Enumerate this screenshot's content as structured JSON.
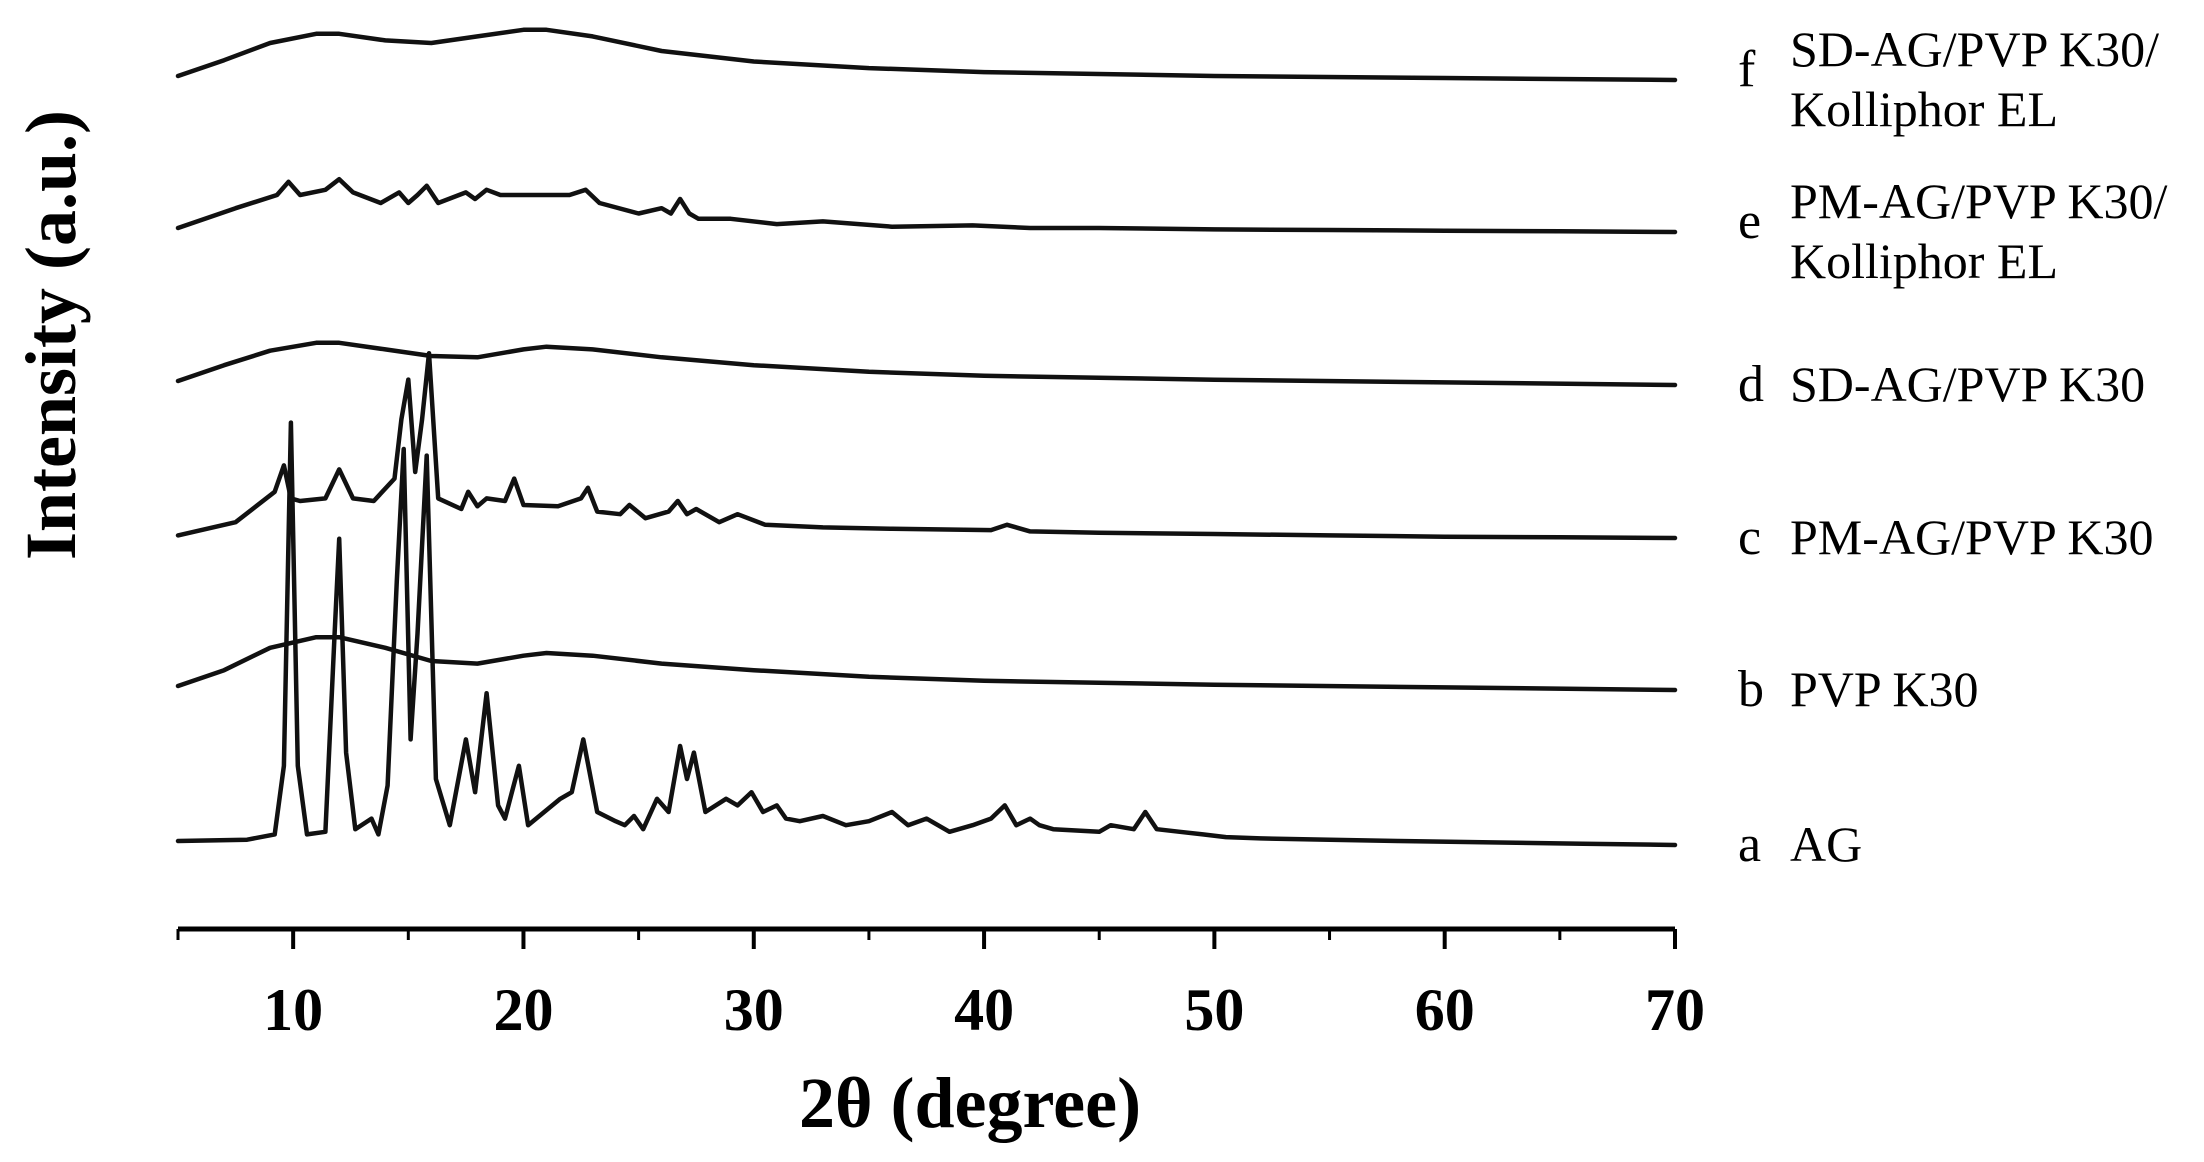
{
  "chart_data": {
    "type": "line",
    "title": "",
    "xlabel": "2θ (degree)",
    "ylabel": "Intensity (a.u.)",
    "xlim": [
      5,
      70
    ],
    "xticks": [
      10,
      20,
      30,
      40,
      50,
      60,
      70
    ],
    "grid": false,
    "legend": "right",
    "y_scale": "offset-stacked, arbitrary units",
    "series": [
      {
        "letter": "a",
        "name": "AG",
        "x": [
          5,
          8.0,
          9.2,
          9.6,
          9.9,
          10.2,
          10.6,
          11.4,
          11.8,
          12.0,
          12.3,
          12.7,
          13.4,
          13.7,
          14.1,
          14.5,
          14.8,
          15.1,
          15.4,
          15.8,
          16.2,
          16.8,
          17.5,
          17.9,
          18.4,
          18.9,
          19.2,
          19.5,
          19.8,
          20.2,
          21.6,
          22.1,
          22.6,
          23.2,
          24.0,
          24.4,
          24.8,
          25.2,
          25.8,
          26.3,
          26.8,
          27.1,
          27.4,
          27.9,
          28.8,
          29.3,
          29.9,
          30.4,
          31.0,
          31.4,
          32.0,
          33.0,
          34.0,
          35.0,
          36.0,
          36.7,
          37.5,
          38.5,
          39.5,
          40.3,
          40.9,
          41.4,
          42.0,
          42.4,
          43.0,
          45.0,
          45.5,
          46.5,
          47.0,
          47.5,
          48.5,
          49.5,
          50.5,
          52,
          55,
          58,
          62,
          66,
          70
        ],
        "values": [
          3,
          4,
          8,
          60,
          320,
          60,
          8,
          10,
          160,
          232,
          70,
          12,
          20,
          8,
          45,
          200,
          300,
          80,
          160,
          295,
          50,
          15,
          80,
          40,
          115,
          30,
          20,
          40,
          60,
          15,
          35,
          40,
          80,
          25,
          18,
          15,
          22,
          12,
          35,
          25,
          75,
          50,
          70,
          25,
          35,
          30,
          40,
          25,
          30,
          20,
          18,
          22,
          15,
          18,
          25,
          15,
          20,
          10,
          15,
          20,
          30,
          15,
          20,
          15,
          12,
          10,
          15,
          12,
          25,
          12,
          10,
          8,
          6,
          5,
          4,
          3,
          2,
          1,
          0
        ]
      },
      {
        "letter": "b",
        "name": "PVP K30",
        "x": [
          5,
          7,
          9,
          11,
          12,
          14,
          16,
          18,
          20,
          21,
          23,
          26,
          30,
          35,
          40,
          50,
          60,
          70
        ],
        "values": [
          3,
          15,
          32,
          40,
          40,
          32,
          22,
          20,
          26,
          28,
          26,
          20,
          15,
          10,
          7,
          4,
          2,
          0
        ]
      },
      {
        "letter": "c",
        "name": "PM-AG/PVP K30",
        "x": [
          5,
          7.5,
          9.2,
          9.6,
          9.9,
          10.3,
          11.4,
          12.0,
          12.6,
          13.5,
          14.4,
          14.7,
          15.0,
          15.3,
          15.6,
          15.9,
          16.3,
          17.3,
          17.6,
          18.0,
          18.4,
          19.2,
          19.6,
          20.0,
          21.5,
          22.5,
          22.8,
          23.2,
          24.2,
          24.6,
          25.3,
          26.3,
          26.7,
          27.1,
          27.5,
          28.5,
          29.3,
          30.5,
          33,
          36,
          40.3,
          41,
          42,
          45,
          50,
          55,
          60,
          65,
          70
        ],
        "values": [
          2,
          12,
          35,
          55,
          30,
          28,
          30,
          52,
          30,
          28,
          45,
          90,
          120,
          50,
          90,
          140,
          30,
          22,
          35,
          24,
          30,
          28,
          45,
          25,
          24,
          30,
          38,
          20,
          18,
          25,
          15,
          20,
          28,
          18,
          22,
          12,
          18,
          10,
          8,
          7,
          6,
          10,
          5,
          4,
          3,
          2,
          1,
          0.5,
          0
        ]
      },
      {
        "letter": "d",
        "name": "SD-AG/PVP K30",
        "x": [
          5,
          7,
          9,
          11,
          12,
          14,
          16,
          18,
          20,
          21,
          23,
          26,
          30,
          35,
          40,
          50,
          60,
          70
        ],
        "values": [
          3,
          15,
          26,
          32,
          32,
          27,
          22,
          21,
          27,
          29,
          27,
          21,
          15,
          10,
          7,
          4,
          2,
          0
        ]
      },
      {
        "letter": "e",
        "name": "PM-AG/PVP K30/ Kolliphor EL",
        "x": [
          5,
          7.5,
          9.3,
          9.8,
          10.3,
          11.4,
          12.0,
          12.6,
          13.8,
          14.6,
          15.0,
          15.4,
          15.8,
          16.3,
          17.5,
          17.9,
          18.4,
          19.0,
          20.5,
          22.0,
          22.7,
          23.3,
          25.0,
          26.0,
          26.4,
          26.8,
          27.2,
          27.6,
          29.0,
          31.0,
          33.0,
          36.0,
          39.5,
          42.0,
          45.0,
          50,
          55,
          60,
          65,
          70
        ],
        "values": [
          3,
          18,
          28,
          38,
          28,
          32,
          40,
          30,
          22,
          30,
          22,
          28,
          35,
          22,
          30,
          25,
          32,
          28,
          28,
          28,
          32,
          22,
          14,
          18,
          14,
          25,
          14,
          10,
          10,
          6,
          8,
          4,
          5,
          3,
          3,
          2,
          1.5,
          1,
          0.5,
          0
        ]
      },
      {
        "letter": "f",
        "name": "SD-AG/PVP K30/ Kolliphor EL",
        "x": [
          5,
          7,
          9,
          11,
          12,
          14,
          16,
          18,
          20,
          21,
          23,
          26,
          30,
          35,
          40,
          50,
          60,
          70
        ],
        "values": [
          3,
          15,
          28,
          35,
          35,
          30,
          28,
          33,
          38,
          38,
          33,
          22,
          14,
          9,
          6,
          3,
          1.5,
          0
        ]
      }
    ]
  }
}
